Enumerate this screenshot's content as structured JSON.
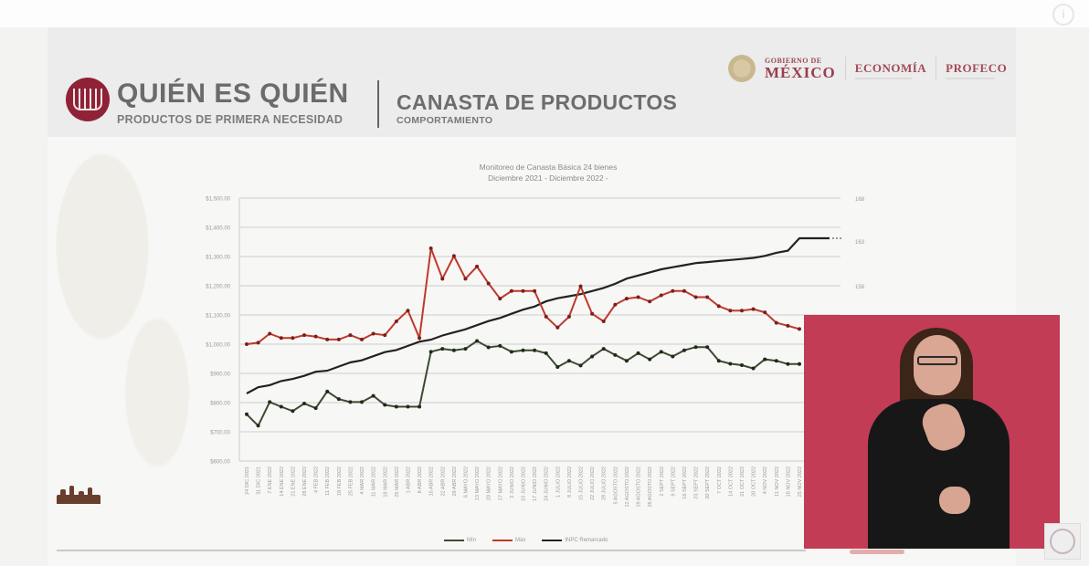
{
  "header": {
    "brand_title": "QUIÉN ES QUIÉN",
    "brand_subtitle": "PRODUCTOS DE PRIMERA NECESIDAD",
    "section_title": "CANASTA DE PRODUCTOS",
    "section_subtitle": "COMPORTAMIENTO",
    "gov_small": "GOBIERNO DE",
    "gov_big": "MÉXICO",
    "org1": "ECONOMÍA",
    "org2": "PROFECO"
  },
  "overlay": {
    "info_icon": "i",
    "interpreter": "sign-language-interpreter"
  },
  "colors": {
    "max": "#c0392b",
    "min": "#3d4a33",
    "inpc": "#222222",
    "interpreter_bg": "#c23c55",
    "brand": "#8f2236"
  },
  "chart_data": {
    "type": "line",
    "title": "Monitoreo de Canasta Básica 24 bienes",
    "subtitle": "Diciembre 2021 - Diciembre 2022 -",
    "xlabel": "",
    "ylabel": "",
    "ylim": [
      600,
      1500
    ],
    "yticks": [
      "$1,500.00",
      "$1,400.00",
      "$1,300.00",
      "$1,200.00",
      "$1,100.00",
      "$1,000.00",
      "$900.00",
      "$800.00",
      "$700.00",
      "$600.00"
    ],
    "y2ticks": [
      "168",
      "163",
      "158"
    ],
    "grid": true,
    "legend_position": "bottom",
    "legend": [
      "Mín",
      "Máx",
      "INPC Remarcado"
    ],
    "x_count": 49,
    "x": [
      "24 DIC 2021",
      "31 DIC 2021",
      "7 ENE 2022",
      "14 ENE 2022",
      "21 ENE 2022",
      "28 ENE 2022",
      "4 FEB 2022",
      "11 FEB 2022",
      "18 FEB 2022",
      "25 FEB 2022",
      "4 MAR 2022",
      "11 MAR 2022",
      "18 MAR 2022",
      "25 MAR 2022",
      "1 ABR 2022",
      "8 ABR 2022",
      "15 ABR 2022",
      "22 ABR 2022",
      "29 ABR 2022",
      "6 MAYO 2022",
      "13 MAYO 2022",
      "20 MAYO 2022",
      "27 MAYO 2022",
      "3 JUNIO 2022",
      "10 JUNIO 2022",
      "17 JUNIO 2022",
      "24 JUNIO 2022",
      "1 JULIO 2022",
      "8 JULIO 2022",
      "15 JULIO 2022",
      "22 JULIO 2022",
      "29 JULIO 2022",
      "5 AGOSTO 2022",
      "12 AGOSTO 2022",
      "19 AGOSTO 2022",
      "26 AGOSTO 2022",
      "2 SEPT 2022",
      "9 SEPT 2022",
      "16 SEPT 2022",
      "23 SEPT 2022",
      "30 SEPT 2022",
      "7 OCT 2022",
      "14 OCT 2022",
      "21 OCT 2022",
      "28 OCT 2022",
      "4 NOV 2022",
      "11 NOV 2022",
      "18 NOV 2022",
      "25 NOV 2022"
    ],
    "series": [
      {
        "name": "Máx",
        "color": "#c0392b",
        "values": [
          1000,
          1005,
          1036,
          1021,
          1021,
          1031,
          1026,
          1016,
          1016,
          1031,
          1016,
          1036,
          1031,
          1078,
          1115,
          1021,
          1328,
          1224,
          1302,
          1224,
          1266,
          1208,
          1156,
          1182,
          1182,
          1182,
          1094,
          1057,
          1094,
          1198,
          1104,
          1078,
          1135,
          1156,
          1161,
          1146,
          1167,
          1182,
          1182,
          1161,
          1161,
          1130,
          1115,
          1115,
          1120,
          1109,
          1073,
          1063,
          1052
        ]
      },
      {
        "name": "Mín",
        "color": "#3d4a33",
        "values": [
          760,
          721,
          802,
          786,
          771,
          797,
          781,
          838,
          812,
          802,
          802,
          823,
          792,
          786,
          786,
          786,
          974,
          984,
          979,
          984,
          1011,
          989,
          994,
          974,
          979,
          979,
          969,
          922,
          943,
          927,
          958,
          984,
          963,
          943,
          969,
          948,
          974,
          958,
          979,
          990,
          990,
          943,
          933,
          928,
          917,
          948,
          943,
          932,
          932
        ]
      },
      {
        "name": "INPC Remarcado",
        "axis": "right",
        "values": [
          148.2,
          148.8,
          149.0,
          149.4,
          149.6,
          149.9,
          150.3,
          150.4,
          150.8,
          151.2,
          151.4,
          151.8,
          152.2,
          152.4,
          152.8,
          153.2,
          153.4,
          153.8,
          154.1,
          154.4,
          154.8,
          155.2,
          155.5,
          155.9,
          156.3,
          156.6,
          157.1,
          157.4,
          157.6,
          157.8,
          158.1,
          158.4,
          158.8,
          159.3,
          159.6,
          159.9,
          160.2,
          160.4,
          160.6,
          160.8,
          160.9,
          161.0,
          161.1,
          161.2,
          161.3,
          161.5,
          161.8,
          162.0,
          163.2
        ]
      }
    ]
  }
}
